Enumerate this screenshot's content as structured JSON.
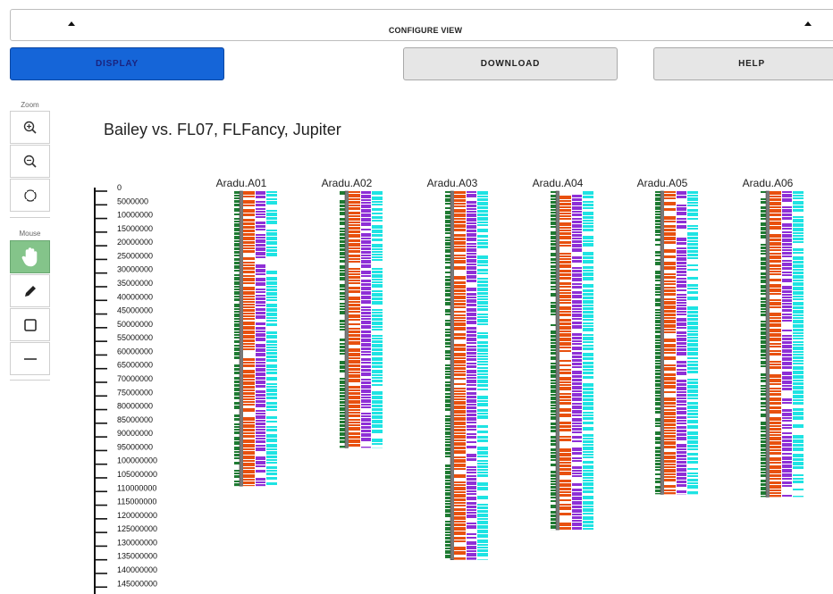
{
  "config_bar": {
    "title": "CONFIGURE VIEW"
  },
  "buttons": {
    "display": "DISPLAY",
    "download": "DOWNLOAD",
    "help": "HELP"
  },
  "toolbar": {
    "zoom_label": "Zoom",
    "mouse_label": "Mouse",
    "zoom_tools": [
      "zoom-in-icon",
      "zoom-out-icon",
      "reset-view-icon"
    ],
    "mouse_tools": [
      "hand-pan-icon",
      "pencil-icon",
      "rectangle-select-icon",
      "line-icon"
    ],
    "active_tool": "hand-pan-icon"
  },
  "colors": {
    "display_button": "#1565d8",
    "active_tool": "#84c48a",
    "track_green": "#1e7b32",
    "track_grey": "#7a7a7a",
    "track_orange": "#e8500f",
    "track_purple": "#8e2fd6",
    "track_cyan": "#1ee3e3"
  },
  "chart_data": {
    "type": "chromosome-tracks",
    "title": "Bailey vs. FL07, FLFancy, Jupiter",
    "scale_ticks": [
      "0",
      "5000000",
      "10000000",
      "15000000",
      "20000000",
      "25000000",
      "30000000",
      "35000000",
      "40000000",
      "45000000",
      "50000000",
      "55000000",
      "60000000",
      "65000000",
      "70000000",
      "75000000",
      "80000000",
      "85000000",
      "90000000",
      "95000000",
      "100000000",
      "105000000",
      "110000000",
      "115000000",
      "120000000",
      "125000000",
      "130000000",
      "135000000",
      "140000000",
      "145000000"
    ],
    "chromosomes": [
      {
        "name": "Aradu.A01",
        "length": 108000000
      },
      {
        "name": "Aradu.A02",
        "length": 94000000
      },
      {
        "name": "Aradu.A03",
        "length": 135000000
      },
      {
        "name": "Aradu.A04",
        "length": 124000000
      },
      {
        "name": "Aradu.A05",
        "length": 111000000
      },
      {
        "name": "Aradu.A06",
        "length": 112000000
      }
    ]
  }
}
